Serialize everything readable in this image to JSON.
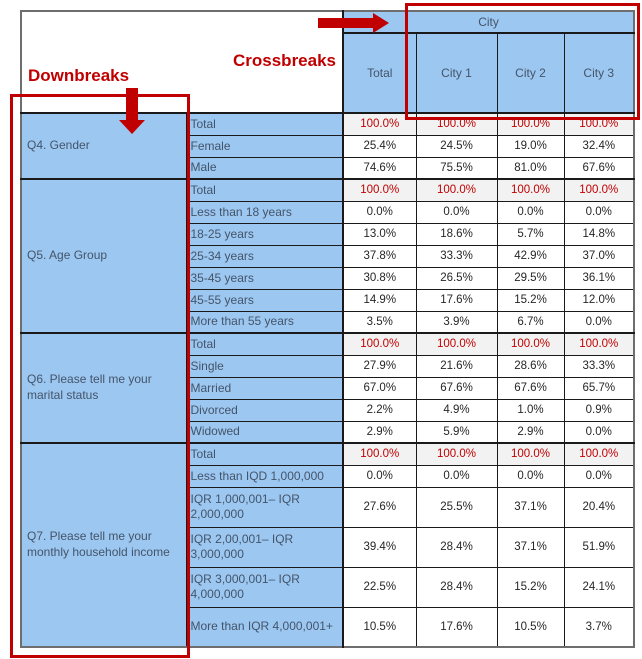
{
  "annotations": {
    "downbreaks_label": "Downbreaks",
    "crossbreaks_label": "Crossbreaks"
  },
  "colors": {
    "accent_red": "#C00000",
    "cell_blue": "#9CC7F0",
    "total_row_bg": "#F2F2F2",
    "label_text": "#44546A"
  },
  "chart_data": {
    "type": "table",
    "banner": "City",
    "columns": [
      "Total",
      "City 1",
      "City 2",
      "City 3"
    ],
    "row_groups": [
      {
        "label": "Q4. Gender",
        "rows": [
          {
            "category": "Total",
            "values": [
              "100.0%",
              "100.0%",
              "100.0%",
              "100.0%"
            ],
            "is_total": true
          },
          {
            "category": "Female",
            "values": [
              "25.4%",
              "24.5%",
              "19.0%",
              "32.4%"
            ]
          },
          {
            "category": "Male",
            "values": [
              "74.6%",
              "75.5%",
              "81.0%",
              "67.6%"
            ]
          }
        ]
      },
      {
        "label": "Q5. Age Group",
        "rows": [
          {
            "category": "Total",
            "values": [
              "100.0%",
              "100.0%",
              "100.0%",
              "100.0%"
            ],
            "is_total": true
          },
          {
            "category": "Less than 18 years",
            "values": [
              "0.0%",
              "0.0%",
              "0.0%",
              "0.0%"
            ]
          },
          {
            "category": "18-25 years",
            "values": [
              "13.0%",
              "18.6%",
              "5.7%",
              "14.8%"
            ]
          },
          {
            "category": "25-34 years",
            "values": [
              "37.8%",
              "33.3%",
              "42.9%",
              "37.0%"
            ]
          },
          {
            "category": "35-45 years",
            "values": [
              "30.8%",
              "26.5%",
              "29.5%",
              "36.1%"
            ]
          },
          {
            "category": "45-55 years",
            "values": [
              "14.9%",
              "17.6%",
              "15.2%",
              "12.0%"
            ]
          },
          {
            "category": "More than 55 years",
            "values": [
              "3.5%",
              "3.9%",
              "6.7%",
              "0.0%"
            ]
          }
        ]
      },
      {
        "label": "Q6. Please tell me your marital status",
        "rows": [
          {
            "category": "Total",
            "values": [
              "100.0%",
              "100.0%",
              "100.0%",
              "100.0%"
            ],
            "is_total": true
          },
          {
            "category": "Single",
            "values": [
              "27.9%",
              "21.6%",
              "28.6%",
              "33.3%"
            ]
          },
          {
            "category": "Married",
            "values": [
              "67.0%",
              "67.6%",
              "67.6%",
              "65.7%"
            ]
          },
          {
            "category": "Divorced",
            "values": [
              "2.2%",
              "4.9%",
              "1.0%",
              "0.9%"
            ]
          },
          {
            "category": "Widowed",
            "values": [
              "2.9%",
              "5.9%",
              "2.9%",
              "0.0%"
            ]
          }
        ]
      },
      {
        "label": "Q7. Please tell me your monthly household income",
        "rows": [
          {
            "category": "Total",
            "values": [
              "100.0%",
              "100.0%",
              "100.0%",
              "100.0%"
            ],
            "is_total": true
          },
          {
            "category": "Less than IQD 1,000,000",
            "values": [
              "0.0%",
              "0.0%",
              "0.0%",
              "0.0%"
            ]
          },
          {
            "category": "IQR 1,000,001– IQR 2,000,000",
            "values": [
              "27.6%",
              "25.5%",
              "37.1%",
              "20.4%"
            ],
            "tall": true
          },
          {
            "category": "IQR 2,00,001– IQR 3,000,000",
            "values": [
              "39.4%",
              "28.4%",
              "37.1%",
              "51.9%"
            ],
            "tall": true
          },
          {
            "category": "IQR 3,000,001– IQR 4,000,000",
            "values": [
              "22.5%",
              "28.4%",
              "15.2%",
              "24.1%"
            ],
            "tall": true
          },
          {
            "category": "More than IQR 4,000,001+",
            "values": [
              "10.5%",
              "17.6%",
              "10.5%",
              "3.7%"
            ],
            "tall": true
          }
        ]
      }
    ]
  }
}
